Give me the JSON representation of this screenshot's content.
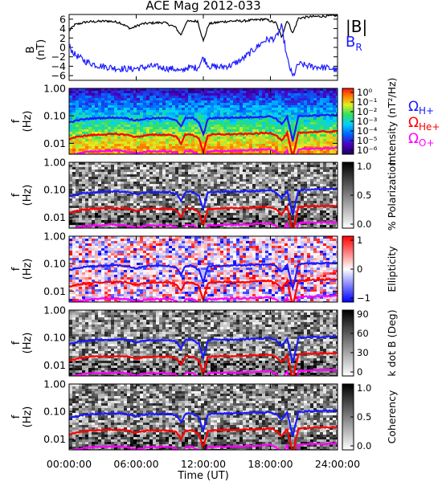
{
  "title": "ACE Mag 2012-033",
  "xlabel": "Time (UT)",
  "x_ticks": [
    "00:00:00",
    "06:00:00",
    "12:00:00",
    "18:00:00",
    "24:00:00"
  ],
  "colors": {
    "b_total": "#000000",
    "b_r": "#1a1aff",
    "omega_h": "#1a1aff",
    "omega_he": "#ff0000",
    "omega_o": "#ff00ff"
  },
  "legend_b": {
    "total": "|B|",
    "radial": "B",
    "radial_sub": "R"
  },
  "legend_omega": [
    {
      "sym": "Ω",
      "sub": "H+",
      "color": "#1a1aff"
    },
    {
      "sym": "Ω",
      "sub": "He+",
      "color": "#ff0000"
    },
    {
      "sym": "Ω",
      "sub": "O+",
      "color": "#ff00ff"
    }
  ],
  "freq_ylabel": [
    "f",
    "(Hz)"
  ],
  "freq_ticks": [
    "1.00",
    "0.10",
    "0.01"
  ],
  "chart_data": [
    {
      "type": "line",
      "panel": "magnetic field",
      "ylabel": "B (nT)",
      "yticks": [
        "6",
        "4",
        "2",
        "0",
        "−2",
        "−4",
        "−6"
      ],
      "ylim": [
        -7,
        7
      ],
      "xlim_hours": [
        0,
        24
      ],
      "series": [
        {
          "name": "|B|",
          "x_hours": [
            0,
            0.5,
            1.5,
            2.5,
            3.5,
            4.5,
            5.5,
            6.5,
            7.5,
            8.5,
            9.5,
            10,
            10.5,
            11.5,
            12,
            12.5,
            13.5,
            14.5,
            15.5,
            16.5,
            17.5,
            18.5,
            19,
            19.5,
            20,
            20.5,
            21.5,
            22.5,
            23.5,
            24
          ],
          "values": [
            3.5,
            4.8,
            5.4,
            5.5,
            5.6,
            5.3,
            4.0,
            5.0,
            5.2,
            5.3,
            4.3,
            2.6,
            5.5,
            5.6,
            1.3,
            5.0,
            5.4,
            5.6,
            5.6,
            5.8,
            6.0,
            5.2,
            2.2,
            5.8,
            3.0,
            6.2,
            6.5,
            6.6,
            6.7,
            6.8
          ]
        },
        {
          "name": "B R",
          "x_hours": [
            0,
            0.5,
            1.5,
            2.5,
            3.5,
            4.5,
            5.5,
            6.5,
            7.5,
            8.5,
            9.5,
            10,
            10.5,
            11.5,
            12,
            12.5,
            13.5,
            14.5,
            15.5,
            16.5,
            17.5,
            18.5,
            19,
            19.5,
            20,
            20.5,
            21.5,
            22.5,
            23.5,
            24
          ],
          "values": [
            0.2,
            -1.5,
            -3.0,
            -3.8,
            -4.2,
            -4.5,
            -4.6,
            -4.3,
            -4.0,
            -4.4,
            -4.6,
            -5.2,
            -4.3,
            -4.3,
            -2.2,
            -4.0,
            -4.2,
            -3.8,
            -2.5,
            -0.5,
            1.5,
            2.0,
            4.5,
            -2.5,
            -6.3,
            -3.5,
            -4.0,
            -4.2,
            -4.5,
            -5.0
          ]
        }
      ]
    },
    {
      "type": "heatmap",
      "panel": "spectral intensity",
      "colorbar_label": "Intensity (nT²/Hz)",
      "colorbar_ticks": [
        "10⁰",
        "10⁻¹",
        "10⁻²",
        "10⁻³",
        "10⁻⁴",
        "10⁻⁵",
        "10⁻⁶"
      ],
      "yscale": "log",
      "ylim_hz": [
        0.004,
        1.0
      ]
    },
    {
      "type": "heatmap",
      "panel": "percent polarization",
      "colorbar_label": "% Polarization",
      "colorbar_ticks": [
        "1.0",
        "0.5",
        "0.0"
      ],
      "yscale": "log",
      "ylim_hz": [
        0.004,
        1.0
      ]
    },
    {
      "type": "heatmap",
      "panel": "ellipticity",
      "colorbar_label": "Ellipticity",
      "colorbar_ticks": [
        "1",
        "0",
        "−1"
      ],
      "yscale": "log",
      "ylim_hz": [
        0.004,
        1.0
      ]
    },
    {
      "type": "heatmap",
      "panel": "wave normal angle",
      "colorbar_label": "k dot B (Deg)",
      "colorbar_ticks": [
        "90",
        "60",
        "30",
        "0"
      ],
      "yscale": "log",
      "ylim_hz": [
        0.004,
        1.0
      ]
    },
    {
      "type": "heatmap",
      "panel": "coherency",
      "colorbar_label": "Coherency",
      "colorbar_ticks": [
        "1.0",
        "0.5",
        "0.0"
      ],
      "yscale": "log",
      "ylim_hz": [
        0.004,
        1.0
      ]
    },
    {
      "type": "line",
      "panel": "gyrofrequency overlays",
      "x_hours": [
        0,
        1,
        2,
        3,
        4,
        5,
        6,
        7,
        8,
        9,
        9.6,
        10,
        10.4,
        11,
        11.6,
        12,
        12.4,
        13,
        14,
        15,
        16,
        17,
        18,
        18.5,
        19,
        19.5,
        20,
        20.5,
        21,
        22,
        23,
        24
      ],
      "series": [
        {
          "name": "ΩH+",
          "values_hz": [
            0.058,
            0.072,
            0.08,
            0.084,
            0.086,
            0.084,
            0.068,
            0.08,
            0.082,
            0.082,
            0.07,
            0.04,
            0.082,
            0.084,
            0.06,
            0.02,
            0.078,
            0.083,
            0.085,
            0.086,
            0.088,
            0.092,
            0.096,
            0.08,
            0.05,
            0.092,
            0.012,
            0.095,
            0.1,
            0.103,
            0.106,
            0.108
          ]
        },
        {
          "name": "ΩHe+",
          "values_hz": [
            0.0145,
            0.018,
            0.02,
            0.021,
            0.0215,
            0.021,
            0.017,
            0.02,
            0.0205,
            0.0205,
            0.0175,
            0.01,
            0.0205,
            0.021,
            0.015,
            0.005,
            0.0195,
            0.0208,
            0.0213,
            0.0215,
            0.022,
            0.023,
            0.024,
            0.02,
            0.0125,
            0.023,
            0.003,
            0.024,
            0.025,
            0.0258,
            0.0265,
            0.027
          ]
        },
        {
          "name": "ΩO+",
          "values_hz": [
            0.0036,
            0.0045,
            0.005,
            0.0052,
            0.0054,
            0.0052,
            0.0043,
            0.005,
            0.0051,
            0.0051,
            0.0044,
            0.0025,
            0.0051,
            0.0052,
            0.0038,
            0.0012,
            0.0049,
            0.0052,
            0.0053,
            0.0054,
            0.0055,
            0.0058,
            0.006,
            0.005,
            0.0031,
            0.0058,
            0.0008,
            0.006,
            0.0063,
            0.0065,
            0.0066,
            0.0068
          ]
        }
      ]
    }
  ]
}
